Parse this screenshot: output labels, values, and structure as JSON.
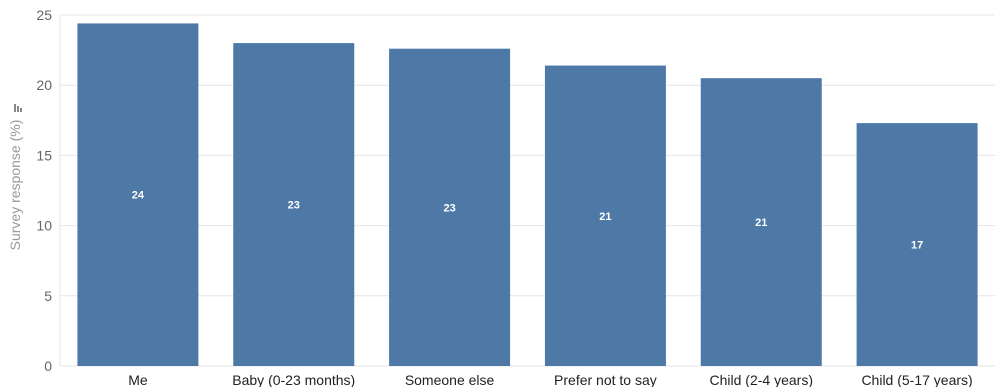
{
  "chart_data": {
    "type": "bar",
    "ylabel": "Survey response (%)",
    "ylim": [
      0,
      25
    ],
    "yticks": [
      0,
      5,
      10,
      15,
      20,
      25
    ],
    "grid": true,
    "bar_color": "#4e79a7",
    "categories": [
      "Me",
      "Baby (0-23 months)",
      "Someone else",
      "Prefer not to say",
      "Child (2-4 years)",
      "Child (5-17 years)"
    ],
    "values": [
      24.4,
      23.0,
      22.6,
      21.4,
      20.5,
      17.3
    ],
    "data_labels": [
      "24",
      "23",
      "23",
      "21",
      "21",
      "17"
    ]
  }
}
